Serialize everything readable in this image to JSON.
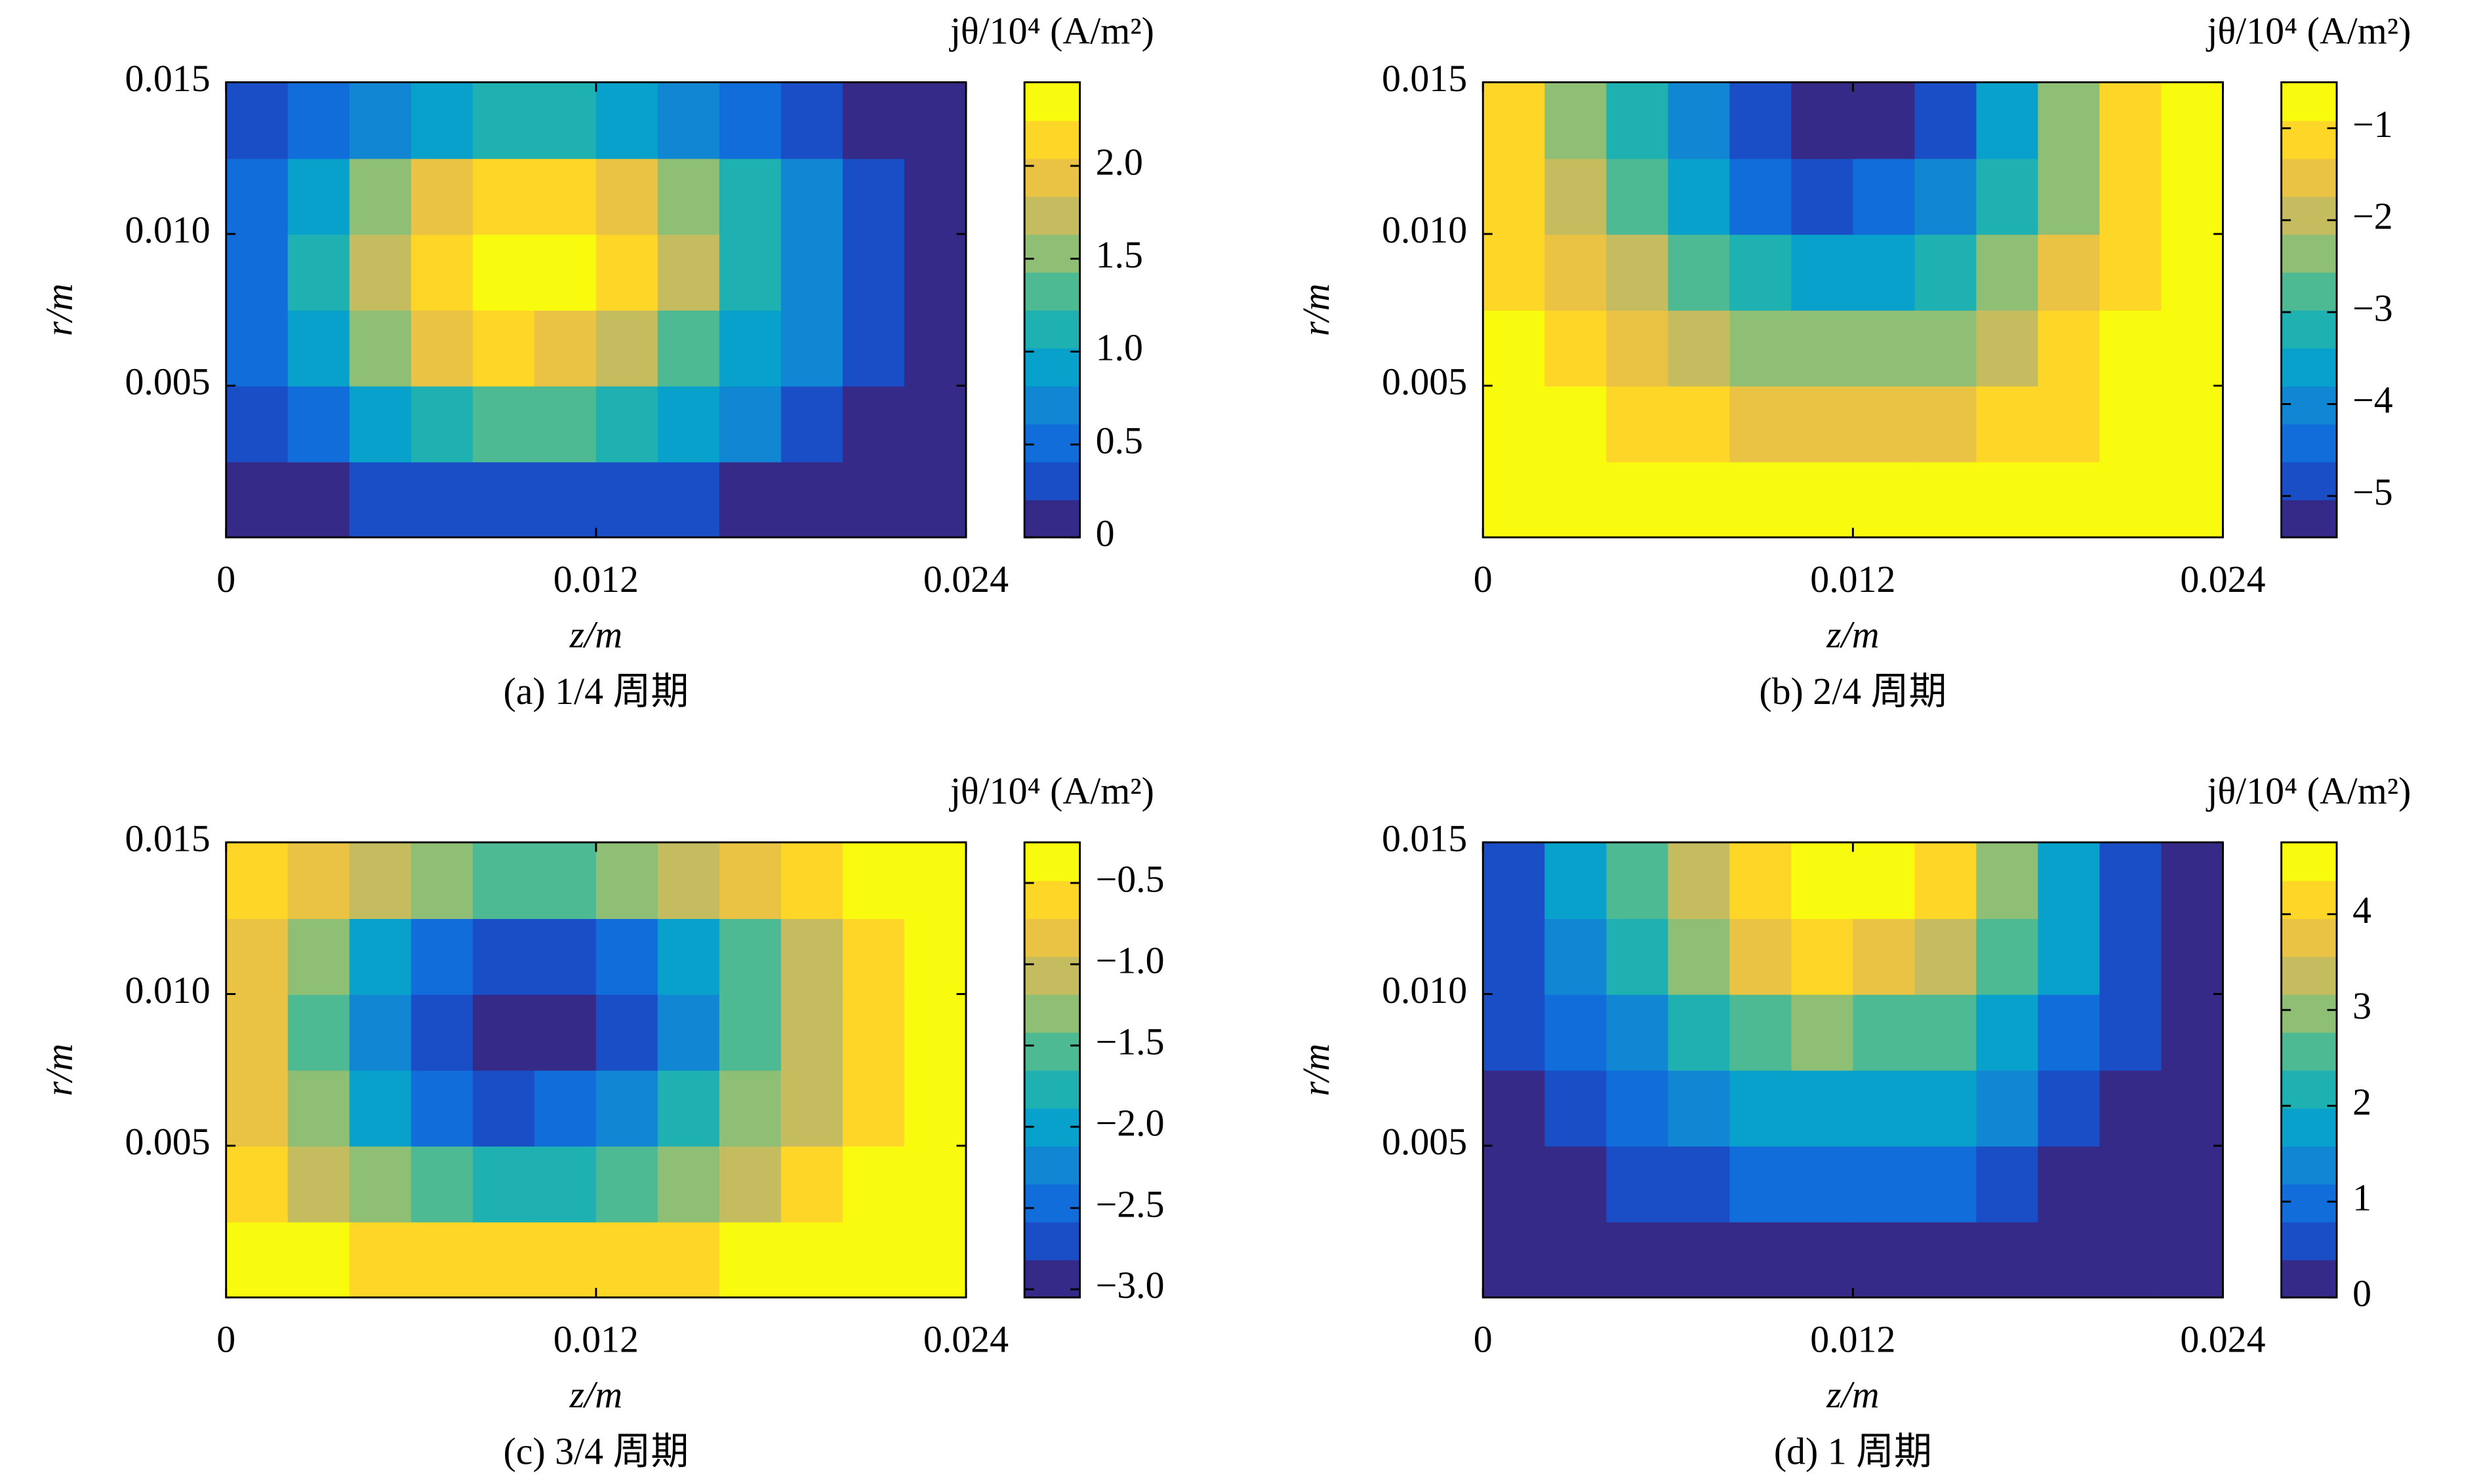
{
  "chart_data": [
    {
      "type": "contour",
      "caption": "(a) 1/4 周期",
      "xlabel": "z/m",
      "ylabel": "r/m",
      "colorbar_label": "jθ/10⁴ (A/m²)",
      "colormap": "parula",
      "levels": 12,
      "xlim": [
        0,
        0.024
      ],
      "ylim": [
        0,
        0.015
      ],
      "xticks": [
        0,
        0.012,
        0.024
      ],
      "yticks": [
        0.005,
        {
          "value": 0.01,
          "label": "0.010"
        },
        0.015
      ],
      "clim": [
        0,
        2.45
      ],
      "cticks": [
        0,
        0.5,
        {
          "value": 1,
          "label": "1.0"
        },
        1.5,
        {
          "value": 2,
          "label": "2.0"
        }
      ],
      "x": [
        0.001,
        0.003,
        0.005,
        0.007,
        0.009,
        0.011,
        0.013,
        0.015,
        0.017,
        0.019,
        0.021,
        0.023
      ],
      "y": [
        0.00125,
        0.00375,
        0.00625,
        0.00875,
        0.01125,
        0.01375
      ],
      "z": [
        [
          0.07,
          0.17,
          0.26,
          0.33,
          0.37,
          0.36,
          0.31,
          0.25,
          0.18,
          0.11,
          0.04,
          0
        ],
        [
          0.27,
          0.61,
          0.94,
          1.21,
          1.35,
          1.31,
          1.15,
          0.92,
          0.65,
          0.4,
          0.16,
          0
        ],
        [
          0.42,
          0.94,
          1.46,
          1.87,
          2.08,
          2.02,
          1.77,
          1.42,
          1.0,
          0.62,
          0.25,
          0
        ],
        [
          0.49,
          1.1,
          1.72,
          2.21,
          2.45,
          2.38,
          2.08,
          1.67,
          1.18,
          0.74,
          0.29,
          0
        ],
        [
          0.44,
          0.99,
          1.54,
          1.98,
          2.21,
          2.14,
          1.87,
          1.5,
          1.06,
          0.66,
          0.26,
          0
        ],
        [
          0.22,
          0.5,
          0.77,
          0.99,
          1.1,
          1.07,
          0.94,
          0.75,
          0.53,
          0.33,
          0.13,
          0
        ]
      ]
    },
    {
      "type": "contour",
      "caption": "(b) 2/4 周期",
      "xlabel": "z/m",
      "ylabel": "r/m",
      "colorbar_label": "jθ/10⁴ (A/m²)",
      "colormap": "parula",
      "levels": 12,
      "xlim": [
        0,
        0.024
      ],
      "ylim": [
        0,
        0.015
      ],
      "xticks": [
        0,
        0.012,
        0.024
      ],
      "yticks": [
        0.005,
        {
          "value": 0.01,
          "label": "0.010"
        },
        0.015
      ],
      "clim": [
        -5.45,
        -0.5
      ],
      "cticks": [
        {
          "value": -5,
          "label": "−5"
        },
        {
          "value": -4,
          "label": "−4"
        },
        {
          "value": -3,
          "label": "−3"
        },
        {
          "value": -2,
          "label": "−2"
        },
        {
          "value": -1,
          "label": "−1"
        }
      ],
      "x": [
        0.001,
        0.003,
        0.005,
        0.007,
        0.009,
        0.011,
        0.013,
        0.015,
        0.017,
        0.019,
        0.021,
        0.023
      ],
      "y": [
        0.00125,
        0.00375,
        0.00625,
        0.00875,
        0.01125,
        0.01375
      ],
      "z": [
        [
          -0.59,
          -0.63,
          -0.68,
          -0.74,
          -0.77,
          -0.8,
          -0.79,
          -0.76,
          -0.7,
          -0.64,
          -0.59,
          -0.55
        ],
        [
          -0.69,
          -0.89,
          -1.09,
          -1.28,
          -1.43,
          -1.52,
          -1.5,
          -1.38,
          -1.18,
          -0.94,
          -0.69,
          -0.55
        ],
        [
          -0.84,
          -1.23,
          -1.61,
          -2.01,
          -2.29,
          -2.49,
          -2.45,
          -2.2,
          -1.81,
          -1.32,
          -0.84,
          -0.55
        ],
        [
          -0.98,
          -1.57,
          -2.15,
          -2.74,
          -3.17,
          -3.46,
          -3.4,
          -3.03,
          -2.44,
          -1.72,
          -0.98,
          -0.55
        ],
        [
          -1.17,
          -1.99,
          -2.82,
          -3.65,
          -4.27,
          -4.68,
          -4.6,
          -4.06,
          -3.23,
          -2.2,
          -1.17,
          -0.55
        ],
        [
          -1.28,
          -2.25,
          -3.22,
          -4.19,
          -4.92,
          -5.4,
          -5.31,
          -4.68,
          -3.71,
          -2.49,
          -1.28,
          -0.55
        ]
      ]
    },
    {
      "type": "contour",
      "caption": "(c) 3/4 周期",
      "xlabel": "z/m",
      "ylabel": "r/m",
      "colorbar_label": "jθ/10⁴ (A/m²)",
      "colormap": "parula",
      "levels": 12,
      "xlim": [
        0,
        0.024
      ],
      "ylim": [
        0,
        0.015
      ],
      "xticks": [
        0,
        0.012,
        0.024
      ],
      "yticks": [
        0.005,
        {
          "value": 0.01,
          "label": "0.010"
        },
        0.015
      ],
      "clim": [
        -3.05,
        -0.25
      ],
      "cticks": [
        {
          "value": -3,
          "label": "−3.0"
        },
        {
          "value": -2.5,
          "label": "−2.5"
        },
        {
          "value": -2,
          "label": "−2.0"
        },
        {
          "value": -1.5,
          "label": "−1.5"
        },
        {
          "value": -1,
          "label": "−1.0"
        },
        {
          "value": -0.5,
          "label": "−0.5"
        }
      ],
      "x": [
        0.001,
        0.003,
        0.005,
        0.007,
        0.009,
        0.011,
        0.013,
        0.015,
        0.017,
        0.019,
        0.021,
        0.023
      ],
      "y": [
        0.00125,
        0.00375,
        0.00625,
        0.00875,
        0.01125,
        0.01375
      ],
      "z": [
        [
          -0.33,
          -0.44,
          -0.55,
          -0.63,
          -0.67,
          -0.66,
          -0.6,
          -0.54,
          -0.46,
          -0.38,
          -0.3,
          -0.25
        ],
        [
          -0.56,
          -0.95,
          -1.32,
          -1.63,
          -1.79,
          -1.75,
          -1.56,
          -1.3,
          -0.99,
          -0.71,
          -0.43,
          -0.25
        ],
        [
          -0.73,
          -1.32,
          -1.92,
          -2.39,
          -2.63,
          -2.56,
          -2.27,
          -1.87,
          -1.39,
          -0.96,
          -0.54,
          -0.25
        ],
        [
          -0.81,
          -1.51,
          -2.22,
          -2.78,
          -3.05,
          -2.97,
          -2.63,
          -2.16,
          -1.6,
          -1.1,
          -0.58,
          -0.25
        ],
        [
          -0.75,
          -1.38,
          -2.01,
          -2.51,
          -2.78,
          -2.7,
          -2.39,
          -1.96,
          -1.46,
          -1.0,
          -0.55,
          -0.25
        ],
        [
          -0.5,
          -0.82,
          -1.13,
          -1.38,
          -1.51,
          -1.47,
          -1.32,
          -1.11,
          -0.86,
          -0.63,
          -0.4,
          -0.25
        ]
      ]
    },
    {
      "type": "contour",
      "caption": "(d) 1 周期",
      "xlabel": "z/m",
      "ylabel": "r/m",
      "colorbar_label": "jθ/10⁴ (A/m²)",
      "colormap": "parula",
      "levels": 12,
      "xlim": [
        0,
        0.024
      ],
      "ylim": [
        0,
        0.015
      ],
      "xticks": [
        0,
        0.012,
        0.024
      ],
      "yticks": [
        0.005,
        {
          "value": 0.01,
          "label": "0.010"
        },
        0.015
      ],
      "clim": [
        0,
        4.75
      ],
      "cticks": [
        0,
        1,
        2,
        3,
        4
      ],
      "x": [
        0.001,
        0.003,
        0.005,
        0.007,
        0.009,
        0.011,
        0.013,
        0.015,
        0.017,
        0.019,
        0.021,
        0.023
      ],
      "y": [
        0.00125,
        0.00375,
        0.00625,
        0.00875,
        0.01125,
        0.01375
      ],
      "z": [
        [
          0.04,
          0.08,
          0.13,
          0.18,
          0.21,
          0.24,
          0.23,
          0.2,
          0.15,
          0.09,
          0.04,
          0
        ],
        [
          0.14,
          0.33,
          0.52,
          0.71,
          0.85,
          0.94,
          0.92,
          0.8,
          0.61,
          0.38,
          0.14,
          0
        ],
        [
          0.28,
          0.66,
          1.03,
          1.41,
          1.69,
          1.88,
          1.84,
          1.6,
          1.22,
          0.75,
          0.28,
          0
        ],
        [
          0.42,
          0.99,
          1.55,
          2.12,
          2.54,
          2.82,
          2.76,
          2.4,
          1.83,
          1.13,
          0.42,
          0
        ],
        [
          0.6,
          1.4,
          2.2,
          3.0,
          3.6,
          4.0,
          3.92,
          3.4,
          2.6,
          1.6,
          0.6,
          0
        ],
        [
          0.71,
          1.65,
          2.59,
          3.53,
          4.23,
          4.7,
          4.61,
          4.0,
          3.06,
          1.88,
          0.71,
          0
        ]
      ]
    }
  ]
}
